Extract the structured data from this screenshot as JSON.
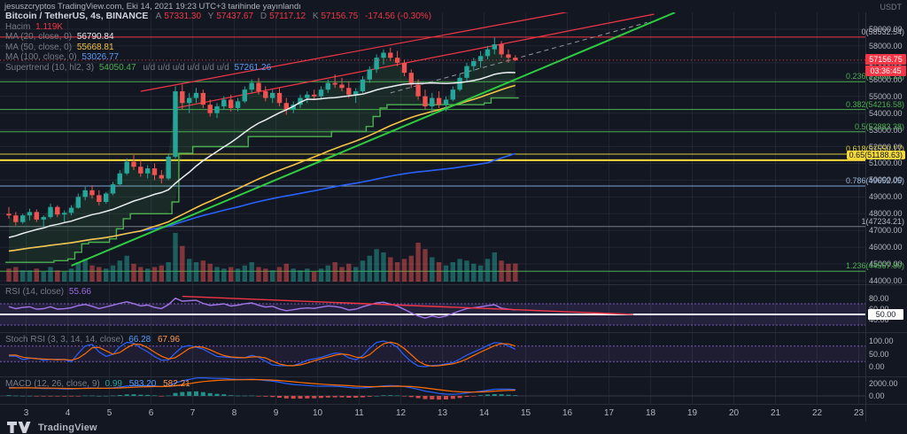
{
  "header": {
    "publish_text": "jesuszcryptos TradingView.com, Eki 14, 2021 19:23 UTC+3 tarihinde yayınlandı",
    "unit": "USDT"
  },
  "legend": {
    "symbol": "Bitcoin / TetherUS, 4s, BINANCE",
    "o_label": "A",
    "o": "57331.30",
    "h_label": "Y",
    "h": "57437.67",
    "l_label": "D",
    "l": "57117.12",
    "c_label": "K",
    "c": "57156.75",
    "change": "-174.56 (-0.30%)",
    "volume_label": "Hacim",
    "volume_value": "1.119K",
    "ma20_label": "MA (20, close, 0)",
    "ma20_value": "56790.84",
    "ma50_label": "MA (50, close, 0)",
    "ma50_value": "55668.81",
    "ma100_label": "MA (100, close, 0)",
    "ma100_value": "53026.77",
    "supertrend_label": "Supertrend (10, hl2, 3)",
    "supertrend_value1": "54050.47",
    "supertrend_ud": "u/d u/d u/d u/d u/d u/d",
    "supertrend_value2": "57261.26"
  },
  "price_axis": {
    "ticks": [
      "59000.00",
      "58000.00",
      "57000.00",
      "56000.00",
      "55000.00",
      "54000.00",
      "53000.00",
      "52000.00",
      "51000.00",
      "50000.00",
      "49000.00",
      "48000.00",
      "47000.00",
      "46000.00",
      "45000.00",
      "44000.00"
    ],
    "current_price": "57156.75",
    "countdown": "03:36:45"
  },
  "fib_levels": [
    {
      "label": "0(58532.54)",
      "price": 58532.54,
      "line": "#f23645",
      "text": "#b2b5be",
      "badge": false
    },
    {
      "label": "0.236(55866.13)",
      "price": 55866.13,
      "line": "#4caf50",
      "text": "#4caf50",
      "badge": false
    },
    {
      "label": "0.382(54216.58)",
      "price": 54216.58,
      "line": "#4caf50",
      "text": "#4caf50",
      "badge": false
    },
    {
      "label": "0.5(52883.38)",
      "price": 52883.38,
      "line": "#4caf50",
      "text": "#4caf50",
      "badge": false
    },
    {
      "label": "0.618(51550.17)",
      "price": 51550.17,
      "line": "#d9cb3c",
      "text": "#d9cb3c",
      "badge": false
    },
    {
      "label": "0.65(51188.63)",
      "price": 51188.63,
      "line": "#f5d93b",
      "text": "#131722",
      "badge": true,
      "badge_bg": "#f5d93b"
    },
    {
      "label": "0.786(49652.05)",
      "price": 49652.05,
      "line": "#7fa6d9",
      "text": "#9fb8dc",
      "badge": false
    },
    {
      "label": "1(47234.21)",
      "price": 47234.21,
      "line": "#787b86",
      "text": "#b2b5be",
      "badge": false
    },
    {
      "label": "1.236(44567.80)",
      "price": 44567.8,
      "line": "#4caf50",
      "text": "#4caf50",
      "badge": false
    }
  ],
  "panels": {
    "rsi": {
      "title": "RSI (14, close)",
      "value": "55.66",
      "ticks": [
        "80.00",
        "60.00",
        "40.00"
      ],
      "badge": "50.00"
    },
    "stoch": {
      "title": "Stoch RSI (3, 3, 14, 14, close)",
      "k": "66.28",
      "d": "67.96",
      "ticks": [
        "100.00",
        "50.00",
        "0.00"
      ]
    },
    "macd": {
      "title": "MACD (12, 26, close, 9)",
      "hist": "0.99",
      "macd": "583.20",
      "signal": "582.21",
      "ticks": [
        "2000.00",
        "0.00"
      ]
    }
  },
  "time_axis": {
    "labels": [
      "3",
      "4",
      "5",
      "6",
      "7",
      "8",
      "9",
      "10",
      "11",
      "12",
      "13",
      "14",
      "15",
      "16",
      "17",
      "18",
      "19",
      "20",
      "21",
      "22",
      "23"
    ]
  },
  "footer": {
    "brand": "TradingView"
  },
  "chart_data": {
    "type": "candlestick",
    "title": "Bitcoin / TetherUS, 4h, BINANCE",
    "interval": "4h",
    "x_axis": "October 2021, days 3-23, 4h candles (first 3 candles are Oct 2)",
    "ylim": [
      43800,
      60100
    ],
    "ohlc": [
      [
        48000,
        48400,
        47700,
        47900
      ],
      [
        47900,
        48100,
        47300,
        47500
      ],
      [
        47500,
        48000,
        47400,
        47900
      ],
      [
        47900,
        48300,
        47600,
        48100
      ],
      [
        48100,
        48250,
        47500,
        47650
      ],
      [
        47650,
        47900,
        47200,
        47800
      ],
      [
        47800,
        48600,
        47700,
        48400
      ],
      [
        48400,
        48500,
        47800,
        47950
      ],
      [
        47950,
        48200,
        47500,
        48050
      ],
      [
        48050,
        48500,
        47900,
        48350
      ],
      [
        48350,
        49200,
        48300,
        49000
      ],
      [
        49000,
        49600,
        48800,
        49400
      ],
      [
        49400,
        49700,
        48900,
        49100
      ],
      [
        49100,
        49400,
        48500,
        48700
      ],
      [
        48700,
        49300,
        48600,
        49200
      ],
      [
        49200,
        49900,
        49100,
        49750
      ],
      [
        49750,
        50600,
        49700,
        50400
      ],
      [
        50400,
        51300,
        50300,
        51100
      ],
      [
        51100,
        51500,
        50600,
        50800
      ],
      [
        50800,
        51200,
        50200,
        50400
      ],
      [
        50400,
        50900,
        50100,
        50700
      ],
      [
        50700,
        51000,
        50000,
        50300
      ],
      [
        50300,
        50600,
        49800,
        50100
      ],
      [
        50100,
        51600,
        50000,
        51400
      ],
      [
        51400,
        55600,
        51300,
        55300
      ],
      [
        55300,
        55700,
        54200,
        54600
      ],
      [
        54600,
        55200,
        54000,
        54900
      ],
      [
        54900,
        55500,
        54600,
        55200
      ],
      [
        55200,
        55400,
        54300,
        54500
      ],
      [
        54500,
        54800,
        53800,
        54000
      ],
      [
        54000,
        54600,
        53700,
        54400
      ],
      [
        54400,
        55000,
        54200,
        54800
      ],
      [
        54800,
        55100,
        54100,
        54300
      ],
      [
        54300,
        54900,
        54100,
        54700
      ],
      [
        54700,
        55600,
        54600,
        55400
      ],
      [
        55400,
        56000,
        55200,
        55800
      ],
      [
        55800,
        56100,
        55100,
        55300
      ],
      [
        55300,
        55600,
        54700,
        54900
      ],
      [
        54900,
        55400,
        54600,
        55200
      ],
      [
        55200,
        55500,
        54400,
        54600
      ],
      [
        54600,
        54900,
        53900,
        54200
      ],
      [
        54200,
        54700,
        54000,
        54500
      ],
      [
        54500,
        55100,
        54300,
        54900
      ],
      [
        54900,
        55300,
        54600,
        55100
      ],
      [
        55100,
        55400,
        54800,
        55000
      ],
      [
        55000,
        55600,
        54800,
        55400
      ],
      [
        55400,
        56000,
        55200,
        55800
      ],
      [
        55800,
        56300,
        55500,
        55700
      ],
      [
        55700,
        56100,
        55300,
        55500
      ],
      [
        55500,
        55900,
        54900,
        55100
      ],
      [
        55100,
        55500,
        54600,
        55300
      ],
      [
        55300,
        56200,
        55200,
        56000
      ],
      [
        56000,
        56800,
        55800,
        56600
      ],
      [
        56600,
        57500,
        56400,
        57300
      ],
      [
        57300,
        57800,
        56900,
        57600
      ],
      [
        57600,
        57900,
        57100,
        57300
      ],
      [
        57300,
        57700,
        56800,
        57000
      ],
      [
        57000,
        57200,
        56200,
        56400
      ],
      [
        56400,
        56600,
        55500,
        55700
      ],
      [
        55700,
        56000,
        54800,
        55000
      ],
      [
        55000,
        55400,
        54200,
        54400
      ],
      [
        54400,
        55200,
        54000,
        54900
      ],
      [
        54900,
        55300,
        54300,
        54500
      ],
      [
        54500,
        55000,
        54100,
        54800
      ],
      [
        54800,
        55600,
        54700,
        55400
      ],
      [
        55400,
        56300,
        55300,
        56100
      ],
      [
        56100,
        57000,
        55900,
        56800
      ],
      [
        56800,
        57300,
        56500,
        57100
      ],
      [
        57100,
        57700,
        56700,
        57400
      ],
      [
        57400,
        58000,
        57200,
        57800
      ],
      [
        57800,
        58500,
        57500,
        58100
      ],
      [
        58100,
        58300,
        57300,
        57500
      ],
      [
        57500,
        57800,
        57000,
        57300
      ],
      [
        57300,
        57450,
        57100,
        57156.75
      ]
    ],
    "volumes": [
      0.8,
      0.9,
      0.7,
      0.7,
      0.8,
      0.6,
      0.9,
      0.7,
      0.6,
      0.8,
      1.2,
      1.4,
      1.0,
      0.9,
      0.8,
      1.0,
      1.3,
      1.6,
      1.1,
      0.9,
      0.8,
      0.9,
      1.0,
      1.2,
      3.0,
      2.2,
      1.4,
      1.2,
      1.3,
      1.1,
      0.9,
      0.8,
      0.9,
      0.8,
      1.0,
      1.2,
      0.9,
      0.8,
      0.7,
      0.9,
      1.1,
      0.8,
      0.7,
      0.8,
      0.6,
      0.8,
      1.0,
      1.2,
      0.9,
      1.1,
      0.9,
      1.3,
      1.6,
      2.0,
      1.8,
      1.5,
      1.2,
      1.4,
      1.6,
      2.4,
      2.0,
      1.5,
      1.2,
      1.0,
      1.2,
      1.4,
      1.3,
      1.1,
      1.0,
      1.4,
      1.8,
      1.3,
      1.1,
      1.119
    ],
    "indicator_values": {
      "ma20": 56790.84,
      "ma50": 55668.81,
      "ma100": 53026.77,
      "supertrend": [
        54050.47,
        57261.26
      ],
      "rsi": 55.66,
      "stoch_rsi": [
        66.28,
        67.96
      ],
      "macd": [
        0.99,
        583.2,
        582.21
      ]
    },
    "trendlines": [
      {
        "name": "support-trendline",
        "i1": 9,
        "p1": 44900,
        "i2": 96,
        "p2": 60000,
        "color": "#2ecc40",
        "width": 2,
        "dash": ""
      },
      {
        "name": "channel-upper",
        "i1": 19,
        "p1": 55300,
        "i2": 88,
        "p2": 60600,
        "color": "#f23645",
        "width": 1.2,
        "dash": ""
      },
      {
        "name": "channel-lower",
        "i1": 24,
        "p1": 54300,
        "i2": 93,
        "p2": 59900,
        "color": "#f23645",
        "width": 1.2,
        "dash": ""
      },
      {
        "name": "channel-median",
        "i1": 55,
        "p1": 55200,
        "i2": 92,
        "p2": 59400,
        "color": "#9598a1",
        "width": 1,
        "dash": "5,4"
      }
    ],
    "rsi_trendline": {
      "i1": 25,
      "v1": 84,
      "i2": 90,
      "v2": 50,
      "color": "#f23645"
    }
  }
}
